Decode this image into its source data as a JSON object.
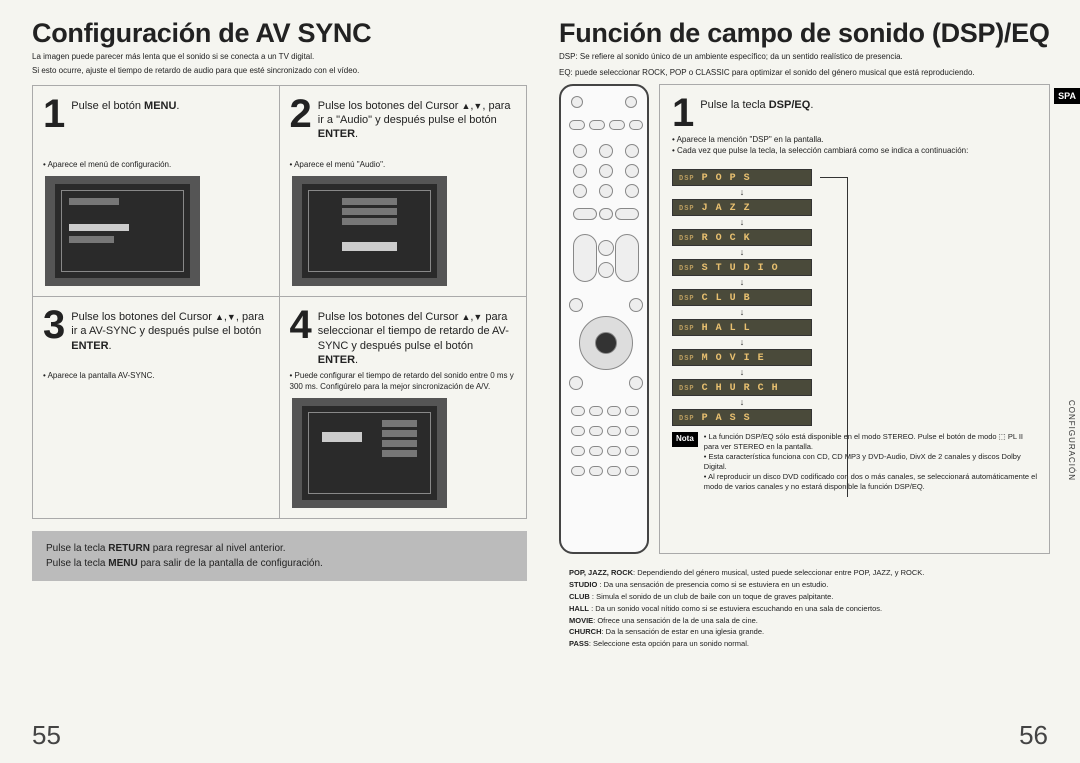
{
  "left": {
    "title": "Configuración de AV SYNC",
    "sub1": "La imagen puede parecer más lenta que el sonido si se conecta a un TV digital.",
    "sub2": "Si esto ocurre, ajuste el tiempo de retardo de audio para que esté sincronizado con el vídeo.",
    "steps": {
      "s1": {
        "num": "1",
        "text": "Pulse el botón <b>MENU</b>.",
        "b1": "Aparece el menú de configuración."
      },
      "s2": {
        "num": "2",
        "text": "Pulse los botones del Cursor <span class='tri'>▲</span>,<span class='tri'>▼</span>, para ir a \"Audio\" y después pulse el botón <b>ENTER</b>.",
        "b1": "Aparece el menú \"Audio\"."
      },
      "s3": {
        "num": "3",
        "text": "Pulse los botones del Cursor <span class='tri'>▲</span>,<span class='tri'>▼</span>, para ir a AV-SYNC y después pulse el botón <b>ENTER</b>.",
        "b1": "Aparece la pantalla AV-SYNC."
      },
      "s4": {
        "num": "4",
        "text": "Pulse los botones del Cursor <span class='tri'>▲</span>,<span class='tri'>▼</span> para seleccionar el tiempo de retardo de AV-SYNC y después pulse el botón <b>ENTER</b>.",
        "b1": "Puede configurar el tiempo de retardo del sonido entre 0 ms y 300 ms. Configúrelo para la mejor sincronización de A/V."
      }
    },
    "bottom1": "Pulse la tecla <b>RETURN</b> para regresar al nivel anterior.",
    "bottom2": "Pulse la tecla <b>MENU</b> para salir de la pantalla de configuración.",
    "page": "55"
  },
  "right": {
    "title": "Función de campo de sonido (DSP)/EQ",
    "sub1": "DSP: Se refiere al sonido único de un ambiente específico; da un sentido realístico de presencia.",
    "sub2": "EQ: puede seleccionar ROCK, POP o CLASSIC para optimizar el sonido del género musical que está reproduciendo.",
    "spa": "SPA",
    "side": "CONFIGURACIÓN",
    "dsp": {
      "num": "1",
      "head": "Pulse la tecla <b>DSP/EQ</b>.",
      "b1": "Aparece  la mención \"DSP\" en la pantalla.",
      "b2": "Cada vez que pulse la tecla, la selección cambiará como se indica a continuación:",
      "modes": [
        "POPS",
        "JAZZ",
        "ROCK",
        "STUDIO",
        "CLUB",
        "HALL",
        "MOVIE",
        "CHURCH",
        "PASS"
      ],
      "nota_label": "Nota",
      "nota": [
        "La función DSP/EQ sólo está disponible en el modo STEREO. Pulse el botón de modo  ⬚ PL II para ver STEREO en la pantalla.",
        "Esta característica funciona con CD, CD MP3 y DVD-Audio, DivX de 2 canales y discos Dolby Digital.",
        "Al reproducir un disco DVD codificado con dos o más canales, se seleccionará automáticamente el modo de varios canales y no estará disponible la función DSP/EQ."
      ]
    },
    "desc": [
      "<b>POP, JAZZ, ROCK</b>: Dependiendo del género musical, usted puede seleccionar entre POP, JAZZ, y ROCK.",
      "<b>STUDIO</b> : Da una sensación de presencia como si se estuviera en un estudio.",
      "<b>CLUB</b> : Simula el sonido de un club de baile con un toque de graves palpitante.",
      "<b>HALL</b> : Da un sonido vocal nítido como si se estuviera escuchando en una sala de conciertos.",
      "<b>MOVIE</b>: Ofrece una sensación de la de una sala de cine.",
      "<b>CHURCH</b>: Da la sensación de estar en una iglesia grande.",
      "<b>PASS</b>: Seleccione esta opción para un sonido normal."
    ],
    "page": "56"
  }
}
